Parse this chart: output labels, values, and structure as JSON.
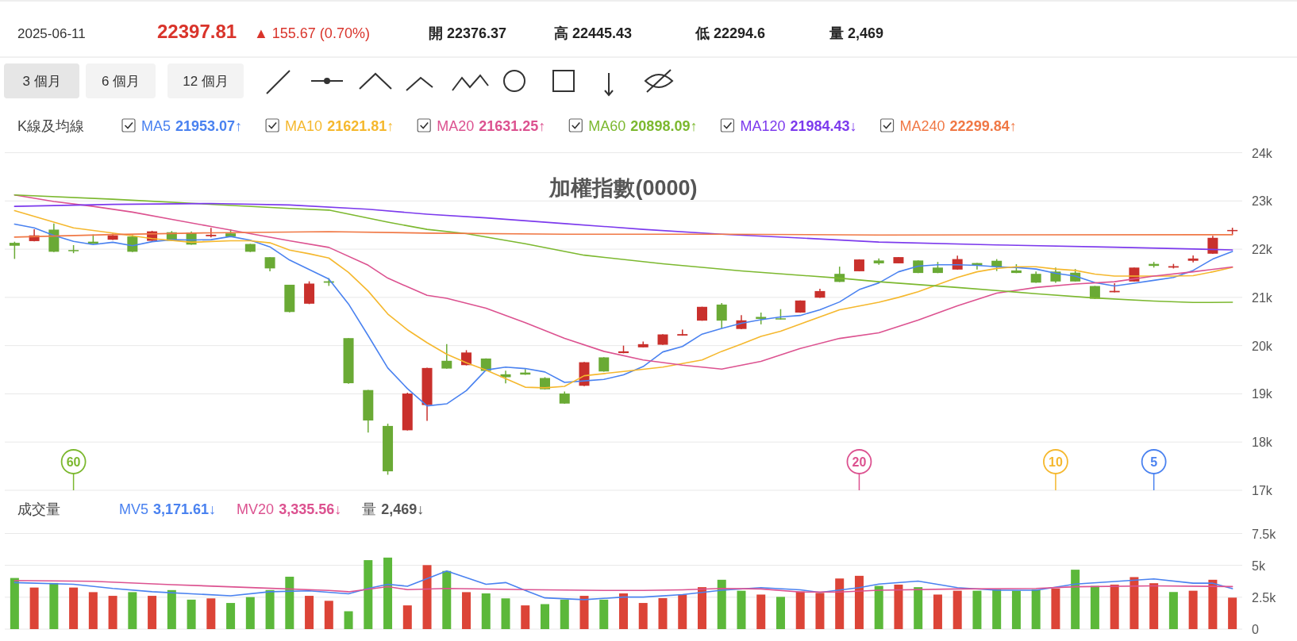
{
  "chart_data": [
    {
      "type": "other",
      "annotations": [
        "2025-06-11",
        "22397.81",
        "▲ 155.67 (0.70%)",
        "開 22376.37",
        "高 22445.43",
        "低 22294.6",
        "量 2,469",
        "3 個月",
        "6 個月",
        "12 個月"
      ]
    },
    {
      "type": "candlestick",
      "title": "加權指數(0000)",
      "legend_title": "K線及均線",
      "legend": "top left",
      "grid": "y",
      "categories": [
        null,
        null,
        null,
        null,
        null,
        null,
        null,
        null,
        null,
        null,
        null,
        null,
        null,
        null,
        null,
        null,
        null,
        null,
        null,
        null,
        null,
        null,
        null,
        null,
        null,
        null,
        null,
        null,
        null,
        null,
        null,
        null,
        null,
        null,
        null,
        null,
        null,
        null,
        null,
        null,
        null,
        null,
        null,
        null,
        null,
        null,
        null,
        null,
        null,
        null,
        null,
        null,
        null,
        null,
        null,
        null,
        null,
        null,
        null,
        null,
        null,
        null,
        null
      ],
      "ylim": [
        17000,
        24000
      ],
      "yticks": [
        {
          "value": 17000,
          "label": "17k"
        },
        {
          "value": 18000,
          "label": "18k"
        },
        {
          "value": 19000,
          "label": "19k"
        },
        {
          "value": 20000,
          "label": "20k"
        },
        {
          "value": 21000,
          "label": "21k"
        },
        {
          "value": 22000,
          "label": "22k"
        },
        {
          "value": 23000,
          "label": "23k"
        },
        {
          "value": 24000,
          "label": "24k"
        }
      ],
      "ohlc": [
        [
          22131,
          22155,
          21798,
          22071
        ],
        [
          22167,
          22411,
          22160,
          22286
        ],
        [
          22405,
          22530,
          21940,
          21946
        ],
        [
          21982,
          22083,
          21917,
          21970
        ],
        [
          22155,
          22304,
          22110,
          22113
        ],
        [
          22196,
          22321,
          22190,
          22286
        ],
        [
          22262,
          22292,
          21940,
          21946
        ],
        [
          22173,
          22381,
          22170,
          22369
        ],
        [
          22351,
          22375,
          22170,
          22173
        ],
        [
          22345,
          22369,
          22090,
          22095
        ],
        [
          22268,
          22440,
          22244,
          22298
        ],
        [
          22327,
          22411,
          22260,
          22262
        ],
        [
          22107,
          22110,
          21940,
          21946
        ],
        [
          21833,
          21833,
          21542,
          21601
        ],
        [
          21262,
          21262,
          20690,
          20697
        ],
        [
          20869,
          21333,
          20860,
          21286
        ],
        [
          21333,
          21399,
          21238,
          21304
        ],
        [
          20155,
          20155,
          19210,
          19220
        ],
        [
          19078,
          19080,
          18197,
          18447
        ],
        [
          18334,
          18381,
          17322,
          17393
        ],
        [
          18244,
          19024,
          18240,
          19006
        ],
        [
          18768,
          19540,
          18441,
          19536
        ],
        [
          19685,
          20030,
          19520,
          19524
        ],
        [
          19595,
          19905,
          19590,
          19857
        ],
        [
          19732,
          19735,
          19470,
          19476
        ],
        [
          19405,
          19482,
          19215,
          19345
        ],
        [
          19441,
          19512,
          19395,
          19399
        ],
        [
          19328,
          19345,
          19090,
          19095
        ],
        [
          19006,
          19048,
          18795,
          18798
        ],
        [
          19167,
          19660,
          19160,
          19655
        ],
        [
          19756,
          19760,
          19460,
          19464
        ],
        [
          19845,
          20000,
          19840,
          19881
        ],
        [
          19964,
          20083,
          19960,
          20030
        ],
        [
          20018,
          20235,
          20015,
          20232
        ],
        [
          20208,
          20333,
          20205,
          20238
        ],
        [
          20518,
          20806,
          20515,
          20804
        ],
        [
          20851,
          20881,
          20357,
          20518
        ],
        [
          20345,
          20631,
          20340,
          20524
        ],
        [
          20595,
          20685,
          20441,
          20554
        ],
        [
          20566,
          20756,
          20540,
          20542
        ],
        [
          20685,
          20938,
          20680,
          20935
        ],
        [
          20994,
          21179,
          20990,
          21131
        ],
        [
          21488,
          21637,
          21318,
          21321
        ],
        [
          21542,
          21790,
          21540,
          21786
        ],
        [
          21765,
          21806,
          21677,
          21706
        ],
        [
          21706,
          21838,
          21703,
          21835
        ],
        [
          21765,
          21768,
          21503,
          21506
        ],
        [
          21618,
          21735,
          21503,
          21506
        ],
        [
          21577,
          21865,
          21574,
          21794
        ],
        [
          21712,
          21715,
          21577,
          21659
        ],
        [
          21759,
          21794,
          21547,
          21635
        ],
        [
          21559,
          21688,
          21503,
          21506
        ],
        [
          21488,
          21535,
          21303,
          21306
        ],
        [
          21535,
          21618,
          21300,
          21330
        ],
        [
          21512,
          21588,
          21327,
          21330
        ],
        [
          21235,
          21238,
          20968,
          20971
        ],
        [
          21106,
          21294,
          21103,
          21135
        ],
        [
          21330,
          21620,
          21327,
          21618
        ],
        [
          21694,
          21735,
          21618,
          21653
        ],
        [
          21618,
          21694,
          21600,
          21647
        ],
        [
          21759,
          21871,
          21724,
          21806
        ],
        [
          21906,
          22277,
          21903,
          22235
        ],
        [
          22376.37,
          22445.43,
          22294.6,
          22397.81
        ]
      ],
      "colors": [
        "#6aaa35",
        "#c9302c",
        "#6aaa35",
        "#6aaa35",
        "#6aaa35",
        "#c9302c",
        "#6aaa35",
        "#c9302c",
        "#6aaa35",
        "#6aaa35",
        "#c9302c",
        "#6aaa35",
        "#6aaa35",
        "#6aaa35",
        "#6aaa35",
        "#c9302c",
        "#6aaa35",
        "#6aaa35",
        "#6aaa35",
        "#6aaa35",
        "#c9302c",
        "#c9302c",
        "#6aaa35",
        "#c9302c",
        "#6aaa35",
        "#6aaa35",
        "#6aaa35",
        "#6aaa35",
        "#6aaa35",
        "#c9302c",
        "#6aaa35",
        "#c9302c",
        "#c9302c",
        "#c9302c",
        "#c9302c",
        "#c9302c",
        "#6aaa35",
        "#c9302c",
        "#6aaa35",
        "#6aaa35",
        "#c9302c",
        "#c9302c",
        "#6aaa35",
        "#c9302c",
        "#6aaa35",
        "#c9302c",
        "#6aaa35",
        "#6aaa35",
        "#c9302c",
        "#6aaa35",
        "#6aaa35",
        "#6aaa35",
        "#6aaa35",
        "#6aaa35",
        "#6aaa35",
        "#6aaa35",
        "#c9302c",
        "#c9302c",
        "#6aaa35",
        "#c9302c",
        "#c9302c",
        "#c9302c",
        "#c9302c"
      ],
      "series": [
        {
          "name": "MA5",
          "type": "line",
          "color": "#4a82f0",
          "values": [
            22520,
            22440,
            22286,
            22161,
            22095,
            22143,
            22071,
            22155,
            22196,
            22190,
            22196,
            22262,
            22185,
            22048,
            21774,
            21577,
            21381,
            20863,
            20208,
            19536,
            19107,
            18750,
            18792,
            19066,
            19494,
            19554,
            19524,
            19453,
            19238,
            19268,
            19298,
            19393,
            19566,
            19869,
            19982,
            20238,
            20357,
            20464,
            20536,
            20595,
            20625,
            20744,
            20905,
            21161,
            21300,
            21530,
            21647,
            21677,
            21677,
            21665,
            21635,
            21618,
            21588,
            21500,
            21441,
            21306,
            21235,
            21294,
            21353,
            21412,
            21559,
            21794,
            21953
          ]
        },
        {
          "name": "MA10",
          "type": "line",
          "color": "#f5b82e",
          "values": [
            22798,
            null,
            22560,
            22440,
            null,
            22333,
            null,
            22220,
            null,
            22143,
            null,
            22173,
            22173,
            22131,
            21982,
            21905,
            21816,
            21518,
            21131,
            20655,
            20328,
            20060,
            19822,
            19643,
            19494,
            19316,
            19137,
            19125,
            19155,
            19375,
            null,
            19464,
            null,
            19554,
            null,
            19703,
            19881,
            20030,
            20191,
            20298,
            20447,
            null,
            20744,
            null,
            20900,
            21000,
            21118,
            21265,
            21412,
            21530,
            21600,
            21635,
            21635,
            21588,
            21559,
            21482,
            21441,
            21441,
            21441,
            21441,
            21450,
            21530,
            21622
          ]
        },
        {
          "name": "MA20",
          "type": "line",
          "color": "#dc5290",
          "values": [
            23125,
            null,
            22988,
            null,
            22887,
            null,
            22768,
            null,
            22619,
            null,
            22470,
            null,
            22321,
            null,
            22173,
            null,
            22036,
            null,
            21667,
            21399,
            null,
            21042,
            20982,
            null,
            20774,
            null,
            20476,
            null,
            20149,
            null,
            19881,
            null,
            19703,
            null,
            19595,
            null,
            19512,
            null,
            19673,
            null,
            19941,
            null,
            20149,
            null,
            20265,
            null,
            20530,
            null,
            20824,
            null,
            21088,
            null,
            21206,
            null,
            21277,
            null,
            21324,
            null,
            21441,
            null,
            21530,
            null,
            21631
          ]
        },
        {
          "name": "MA60",
          "type": "line",
          "color": "#7cb82f",
          "values": [
            23125,
            null,
            null,
            null,
            null,
            23036,
            null,
            null,
            null,
            null,
            null,
            null,
            null,
            null,
            22845,
            null,
            22810,
            null,
            null,
            22560,
            null,
            22411,
            null,
            22321,
            null,
            null,
            22113,
            null,
            null,
            21875,
            null,
            null,
            null,
            21696,
            null,
            null,
            null,
            21548,
            null,
            null,
            null,
            null,
            21399,
            null,
            21324,
            null,
            null,
            null,
            21206,
            null,
            null,
            null,
            21077,
            null,
            null,
            20988,
            null,
            null,
            20924,
            null,
            20894,
            null,
            20898
          ]
        },
        {
          "name": "MA120",
          "type": "line",
          "color": "#7c3aed",
          "values": [
            22887,
            null,
            null,
            null,
            null,
            22929,
            null,
            null,
            null,
            null,
            22946,
            null,
            null,
            null,
            22917,
            null,
            null,
            null,
            22827,
            null,
            null,
            22726,
            null,
            null,
            22649,
            null,
            null,
            null,
            22530,
            null,
            null,
            null,
            22411,
            null,
            null,
            null,
            22310,
            null,
            null,
            null,
            22232,
            null,
            null,
            null,
            22147,
            null,
            null,
            null,
            null,
            null,
            22088,
            null,
            null,
            null,
            null,
            null,
            22041,
            null,
            null,
            null,
            null,
            null,
            21984
          ]
        },
        {
          "name": "MA240",
          "type": "line",
          "color": "#f07845",
          "values": [
            22250,
            null,
            null,
            null,
            null,
            22304,
            null,
            null,
            null,
            null,
            22339,
            null,
            null,
            null,
            null,
            null,
            22363,
            null,
            null,
            null,
            null,
            22333,
            null,
            null,
            null,
            null,
            null,
            null,
            22310,
            null,
            null,
            null,
            null,
            null,
            null,
            null,
            22310,
            null,
            null,
            null,
            null,
            null,
            null,
            null,
            22294,
            null,
            null,
            null,
            null,
            null,
            null,
            null,
            null,
            null,
            null,
            null,
            null,
            null,
            null,
            null,
            null,
            null,
            22300
          ]
        }
      ],
      "annotations": [
        "21953.07↑",
        "21621.81↑",
        "21631.25↑",
        "20898.09↑",
        "21984.43↓",
        "22299.84↑",
        "60",
        "20",
        "10",
        "5"
      ]
    },
    {
      "type": "bar",
      "legend_title": "成交量",
      "legend": "top left",
      "grid": "y",
      "categories": [
        null,
        null,
        null,
        null,
        null,
        null,
        null,
        null,
        null,
        null,
        null,
        null,
        null,
        null,
        null,
        null,
        null,
        null,
        null,
        null,
        null,
        null,
        null,
        null,
        null,
        null,
        null,
        null,
        null,
        null,
        null,
        null,
        null,
        null,
        null,
        null,
        null,
        null,
        null,
        null,
        null,
        null,
        null,
        null,
        null,
        null,
        null,
        null,
        null,
        null,
        null,
        null,
        null,
        null,
        null,
        null,
        null,
        null,
        null,
        null,
        null,
        null,
        null
      ],
      "ylim": [
        0,
        7500
      ],
      "yticks": [
        0,
        {
          "value": 2500,
          "label": "2.5k"
        },
        {
          "value": 5000,
          "label": "5k"
        },
        {
          "value": 7500,
          "label": "7.5k"
        }
      ],
      "series": [
        {
          "name": "MV5",
          "type": "line",
          "color": "#4a82f0",
          "values": [
            3650,
            null,
            null,
            3520,
            null,
            3190,
            null,
            2930,
            null,
            2770,
            null,
            2610,
            null,
            2930,
            null,
            3000,
            null,
            2770,
            3190,
            3520,
            3360,
            null,
            4560,
            null,
            3520,
            3650,
            3030,
            2450,
            null,
            2310,
            null,
            2510,
            2510,
            null,
            2710,
            null,
            3050,
            null,
            3250,
            null,
            3080,
            2880,
            null,
            3250,
            3530,
            null,
            3770,
            null,
            3250,
            null,
            3050,
            null,
            3050,
            null,
            3530,
            null,
            3730,
            null,
            3940,
            null,
            3600,
            3600,
            3172
          ]
        },
        {
          "name": "MV20",
          "type": "line",
          "color": "#dc5290",
          "values": [
            3810,
            null,
            null,
            null,
            3750,
            null,
            null,
            null,
            3490,
            null,
            null,
            null,
            3260,
            null,
            null,
            null,
            3030,
            2930,
            null,
            3330,
            3100,
            null,
            3190,
            null,
            null,
            null,
            3100,
            null,
            null,
            null,
            3030,
            null,
            3030,
            null,
            3080,
            null,
            3190,
            null,
            3150,
            null,
            2910,
            null,
            2910,
            null,
            3050,
            null,
            null,
            null,
            3150,
            null,
            null,
            null,
            3190,
            null,
            3320,
            null,
            null,
            null,
            3390,
            null,
            null,
            null,
            3336
          ]
        },
        {
          "name": "量",
          "type": "bar",
          "values": [
            4010,
            3260,
            3620,
            3260,
            2900,
            2610,
            2900,
            2610,
            3060,
            2310,
            2410,
            2050,
            2510,
            3060,
            4110,
            2610,
            2220,
            1400,
            5410,
            5610,
            1860,
            5020,
            4560,
            2900,
            2800,
            2410,
            1860,
            1960,
            2310,
            2610,
            2310,
            2800,
            2050,
            2430,
            2710,
            3290,
            3870,
            3010,
            2710,
            2530,
            2950,
            2840,
            3970,
            4180,
            3390,
            3490,
            3290,
            2710,
            3010,
            3010,
            3120,
            3010,
            3120,
            3190,
            4660,
            3390,
            3490,
            4080,
            3600,
            2910,
            3010,
            3870,
            2469
          ],
          "colors": [
            "#5cb83a",
            "#dc4437",
            "#5cb83a",
            "#dc4437",
            "#dc4437",
            "#dc4437",
            "#5cb83a",
            "#dc4437",
            "#5cb83a",
            "#5cb83a",
            "#dc4437",
            "#5cb83a",
            "#5cb83a",
            "#5cb83a",
            "#5cb83a",
            "#dc4437",
            "#dc4437",
            "#5cb83a",
            "#5cb83a",
            "#5cb83a",
            "#dc4437",
            "#dc4437",
            "#5cb83a",
            "#dc4437",
            "#5cb83a",
            "#5cb83a",
            "#dc4437",
            "#5cb83a",
            "#5cb83a",
            "#dc4437",
            "#5cb83a",
            "#dc4437",
            "#dc4437",
            "#dc4437",
            "#dc4437",
            "#dc4437",
            "#5cb83a",
            "#5cb83a",
            "#dc4437",
            "#5cb83a",
            "#dc4437",
            "#dc4437",
            "#dc4437",
            "#dc4437",
            "#5cb83a",
            "#dc4437",
            "#5cb83a",
            "#dc4437",
            "#dc4437",
            "#5cb83a",
            "#5cb83a",
            "#5cb83a",
            "#5cb83a",
            "#dc4437",
            "#5cb83a",
            "#5cb83a",
            "#dc4437",
            "#dc4437",
            "#dc4437",
            "#5cb83a",
            "#dc4437",
            "#dc4437",
            "#dc4437"
          ]
        }
      ],
      "annotations": [
        "3,171.61↓",
        "3,335.56↓",
        "2,469↓"
      ]
    }
  ]
}
